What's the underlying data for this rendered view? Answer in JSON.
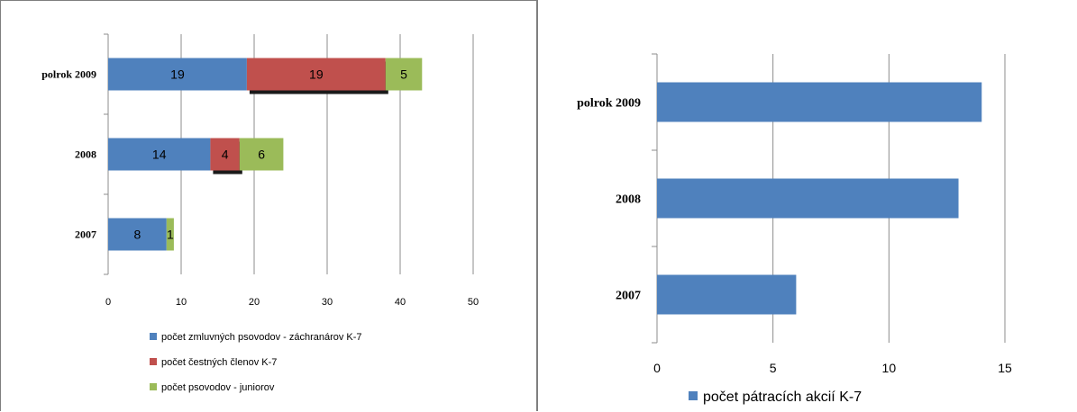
{
  "chart_data": [
    {
      "type": "bar",
      "orientation": "horizontal",
      "stacked": true,
      "categories": [
        "polrok 2009",
        "2008",
        "2007"
      ],
      "series": [
        {
          "name": "počet zmluvných psovodov - záchranárov K-7",
          "values": [
            19,
            14,
            8
          ],
          "color": "#4f81bd",
          "labels": [
            "19",
            "14",
            "8"
          ]
        },
        {
          "name": "počet čestných členov K-7",
          "values": [
            19,
            4,
            0
          ],
          "color": "#c0504d",
          "labels": [
            "19",
            "4",
            ""
          ]
        },
        {
          "name": "počet psovodov - juniorov",
          "values": [
            5,
            6,
            1
          ],
          "color": "#9bbb59",
          "labels": [
            "5",
            "6",
            "1"
          ]
        }
      ],
      "xlim": [
        0,
        50
      ],
      "xticks": [
        "0",
        "10",
        "20",
        "30",
        "40",
        "50"
      ],
      "grid": true,
      "legend": "bottom"
    },
    {
      "type": "bar",
      "orientation": "horizontal",
      "categories": [
        "polrok 2009",
        "2008",
        "2007"
      ],
      "series": [
        {
          "name": "počet  pátracích akcií K-7",
          "values": [
            14,
            13,
            6
          ],
          "color": "#4f81bd"
        }
      ],
      "xlim": [
        0,
        15
      ],
      "xticks": [
        "0",
        "5",
        "10",
        "15"
      ],
      "grid": true,
      "legend": "bottom"
    }
  ]
}
